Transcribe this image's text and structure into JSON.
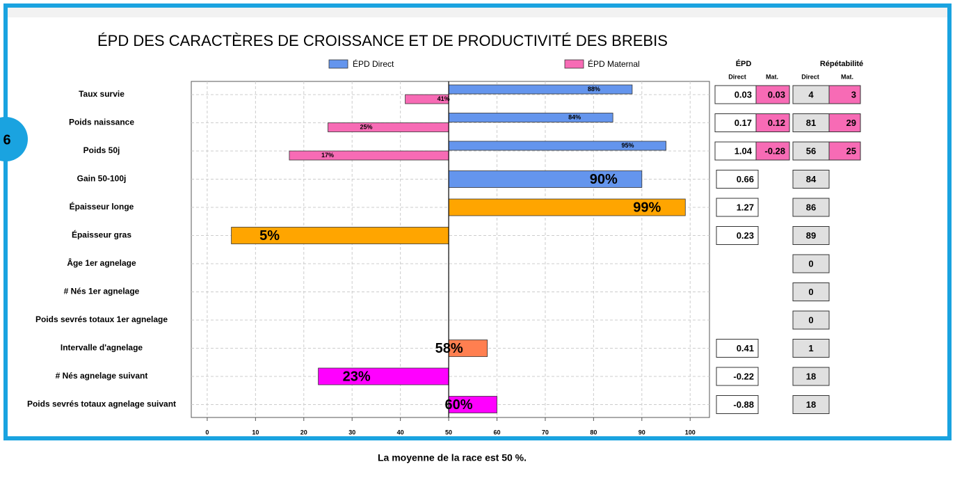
{
  "badge": "6",
  "chart_data": {
    "type": "bar",
    "title": "ÉPD DES CARACTÈRES DE CROISSANCE ET DE PRODUCTIVITÉ DES BREBIS",
    "categories": [
      "Taux survie",
      "Poids naissance",
      "Poids 50j",
      "Gain 50-100j",
      "Épaisseur longe",
      "Épaisseur gras",
      "Âge 1er agnelage",
      "# Nés 1er agnelage",
      "Poids sevrés totaux 1er agnelage",
      "Intervalle d'agnelage",
      "# Nés agnelage suivant",
      "Poids sevrés totaux agnelage suivant"
    ],
    "series": [
      {
        "name": "ÉPD Direct",
        "color": "#6495ed",
        "values": [
          88,
          84,
          95,
          null,
          null,
          null,
          null,
          null,
          null,
          null,
          null,
          null
        ],
        "value_labels": [
          "88%",
          "84%",
          "95%",
          null,
          null,
          null,
          null,
          null,
          null,
          null,
          null,
          null
        ]
      },
      {
        "name": "ÉPD Maternal",
        "color": "#f76bb5",
        "values": [
          41,
          25,
          17,
          null,
          null,
          null,
          null,
          null,
          null,
          null,
          null,
          null
        ],
        "value_labels": [
          "41%",
          "25%",
          "17%",
          null,
          null,
          null,
          null,
          null,
          null,
          null,
          null,
          null
        ]
      }
    ],
    "single_bars": {
      "values": [
        null,
        null,
        null,
        90,
        99,
        5,
        null,
        null,
        null,
        58,
        23,
        60
      ],
      "value_labels": [
        null,
        null,
        null,
        "90%",
        "99%",
        "5%",
        null,
        null,
        null,
        "58%",
        "23%",
        "60%"
      ],
      "colors": [
        null,
        null,
        null,
        "#6495ed",
        "#ffa500",
        "#ffa500",
        null,
        null,
        null,
        "#ff7f50",
        "#ff00ff",
        "#ff00ff"
      ]
    },
    "center": 50,
    "xlim": [
      -3.3,
      104
    ],
    "xticks": [
      0,
      10,
      20,
      30,
      40,
      50,
      60,
      70,
      80,
      90,
      100
    ],
    "grid": true
  },
  "table": {
    "epd_header": "ÉPD",
    "rep_header": "Répétabilité",
    "direct": "Direct",
    "mat": "Mat.",
    "epd_direct": [
      0.03,
      0.17,
      1.04,
      0.66,
      1.27,
      0.23,
      null,
      null,
      null,
      0.41,
      -0.22,
      -0.88
    ],
    "epd_mat": [
      0.03,
      0.12,
      -0.28,
      null,
      null,
      null,
      null,
      null,
      null,
      null,
      null,
      null
    ],
    "rep_direct": [
      4,
      81,
      56,
      84,
      86,
      89,
      0,
      0,
      0,
      1,
      18,
      18
    ],
    "rep_mat": [
      3,
      29,
      25,
      null,
      null,
      null,
      null,
      null,
      null,
      null,
      null,
      null
    ]
  },
  "note": "La moyenne de la race est 50 %."
}
